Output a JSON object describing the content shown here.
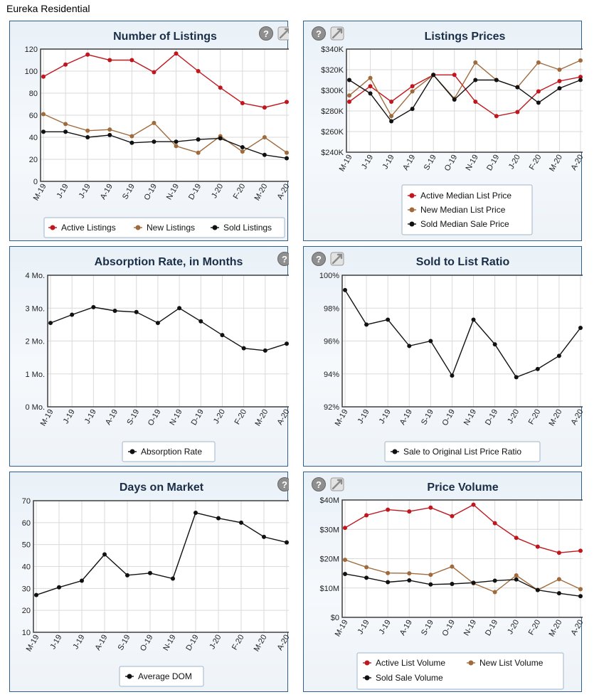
{
  "page_title": "Eureka Residential",
  "colors": {
    "red": "#c0161e",
    "brown": "#a06b3c",
    "black": "#111111",
    "grid": "#d5d5d5",
    "frame": "#4a4a4a"
  },
  "icons": [
    "help-icon",
    "settings-icon"
  ],
  "chart_data": [
    {
      "id": "listings",
      "type": "line",
      "title": "Number of Listings",
      "icons": [
        "help",
        "settings"
      ],
      "categories": [
        "M-19",
        "J-19",
        "J-19",
        "A-19",
        "S-19",
        "O-19",
        "N-19",
        "D-19",
        "J-20",
        "F-20",
        "M-20",
        "A-20"
      ],
      "ylim": [
        0,
        120
      ],
      "yticks": [
        0,
        20,
        40,
        60,
        80,
        100,
        120
      ],
      "ytick_labels": [
        "0",
        "20",
        "40",
        "60",
        "80",
        "100",
        "120"
      ],
      "legend_cols": 3,
      "series": [
        {
          "name": "Active Listings",
          "color": "#c0161e",
          "values": [
            95,
            106,
            115,
            110,
            110,
            99,
            116,
            100,
            85,
            71,
            67,
            72
          ]
        },
        {
          "name": "New Listings",
          "color": "#a06b3c",
          "values": [
            61,
            52,
            46,
            47,
            41,
            53,
            32,
            26,
            41,
            27,
            40,
            26
          ]
        },
        {
          "name": "Sold Listings",
          "color": "#111111",
          "values": [
            45,
            45,
            40,
            42,
            35,
            36,
            36,
            38,
            39,
            31,
            24,
            21
          ]
        }
      ]
    },
    {
      "id": "prices",
      "type": "line",
      "title": "Listings Prices",
      "icons": [
        "help",
        "settings"
      ],
      "categories": [
        "M-19",
        "J-19",
        "J-19",
        "A-19",
        "S-19",
        "O-19",
        "N-19",
        "D-19",
        "J-20",
        "F-20",
        "M-20",
        "A-20"
      ],
      "ylim": [
        240,
        340
      ],
      "yticks": [
        240,
        260,
        280,
        300,
        320,
        340
      ],
      "ytick_labels": [
        "$240K",
        "$260K",
        "$280K",
        "$300K",
        "$320K",
        "$340K"
      ],
      "legend_cols": 1,
      "series": [
        {
          "name": "Active Median List Price",
          "color": "#c0161e",
          "values": [
            289,
            304,
            289,
            304,
            315,
            315,
            289,
            275,
            279,
            299,
            309,
            313
          ]
        },
        {
          "name": "New Median List Price",
          "color": "#a06b3c",
          "values": [
            295,
            312,
            275,
            299,
            315,
            292,
            327,
            310,
            303,
            327,
            320,
            329
          ]
        },
        {
          "name": "Sold Median Sale Price",
          "color": "#111111",
          "values": [
            310,
            297,
            270,
            282,
            315,
            291,
            310,
            310,
            303,
            288,
            302,
            310
          ]
        }
      ]
    },
    {
      "id": "absorption",
      "type": "line",
      "title": "Absorption Rate, in Months",
      "icons": [
        "help"
      ],
      "categories": [
        "M-19",
        "J-19",
        "J-19",
        "A-19",
        "S-19",
        "O-19",
        "N-19",
        "D-19",
        "J-20",
        "F-20",
        "M-20",
        "A-20"
      ],
      "ylim": [
        0,
        4
      ],
      "yticks": [
        0,
        1,
        2,
        3,
        4
      ],
      "ytick_labels": [
        "0 Mo.",
        "1 Mo.",
        "2 Mo.",
        "3 Mo.",
        "4 Mo."
      ],
      "legend_cols": 1,
      "series": [
        {
          "name": "Absorption Rate",
          "color": "#111111",
          "values": [
            2.55,
            2.8,
            3.03,
            2.92,
            2.88,
            2.55,
            3.0,
            2.6,
            2.18,
            1.78,
            1.71,
            1.92
          ]
        }
      ]
    },
    {
      "id": "sold-list-ratio",
      "type": "line",
      "title": "Sold to List Ratio",
      "icons": [
        "help",
        "settings"
      ],
      "categories": [
        "M-19",
        "J-19",
        "J-19",
        "A-19",
        "S-19",
        "O-19",
        "N-19",
        "D-19",
        "J-20",
        "F-20",
        "M-20",
        "A-20"
      ],
      "ylim": [
        92,
        100
      ],
      "yticks": [
        92,
        94,
        96,
        98,
        100
      ],
      "ytick_labels": [
        "92%",
        "94%",
        "96%",
        "98%",
        "100%"
      ],
      "legend_cols": 1,
      "series": [
        {
          "name": "Sale to Original List Price Ratio",
          "color": "#111111",
          "values": [
            99.1,
            97.0,
            97.3,
            95.7,
            96.0,
            93.9,
            97.3,
            95.8,
            93.8,
            94.3,
            95.1,
            96.8
          ]
        }
      ]
    },
    {
      "id": "dom",
      "type": "line",
      "title": "Days on Market",
      "icons": [
        "help"
      ],
      "categories": [
        "M-19",
        "J-19",
        "J-19",
        "A-19",
        "S-19",
        "O-19",
        "N-19",
        "D-19",
        "J-20",
        "F-20",
        "M-20",
        "A-20"
      ],
      "ylim": [
        10,
        70
      ],
      "yticks": [
        10,
        20,
        30,
        40,
        50,
        60,
        70
      ],
      "ytick_labels": [
        "10",
        "20",
        "30",
        "40",
        "50",
        "60",
        "70"
      ],
      "legend_cols": 1,
      "series": [
        {
          "name": "Average DOM",
          "color": "#111111",
          "values": [
            27,
            30.5,
            33.5,
            45.5,
            36,
            37,
            34.5,
            64.5,
            62,
            60,
            53.5,
            51
          ]
        }
      ]
    },
    {
      "id": "volume",
      "type": "line",
      "title": "Price Volume",
      "icons": [
        "help",
        "settings"
      ],
      "categories": [
        "M-19",
        "J-19",
        "J-19",
        "A-19",
        "S-19",
        "O-19",
        "N-19",
        "D-19",
        "J-20",
        "F-20",
        "M-20",
        "A-20"
      ],
      "ylim": [
        0,
        40
      ],
      "yticks": [
        0,
        10,
        20,
        30,
        40
      ],
      "ytick_labels": [
        "$0",
        "$10M",
        "$20M",
        "$30M",
        "$40M"
      ],
      "legend_cols": 2,
      "series": [
        {
          "name": "Active List Volume",
          "color": "#c0161e",
          "values": [
            30.5,
            34.8,
            36.7,
            36.1,
            37.4,
            34.5,
            38.4,
            32.1,
            27.1,
            24.1,
            22.0,
            22.7
          ]
        },
        {
          "name": "New List Volume",
          "color": "#a06b3c",
          "values": [
            19.6,
            17.1,
            15.1,
            15.0,
            14.5,
            17.3,
            11.6,
            8.6,
            14.3,
            9.3,
            13.0,
            9.6
          ]
        },
        {
          "name": "Sold Sale Volume",
          "color": "#111111",
          "values": [
            14.8,
            13.5,
            12.0,
            12.6,
            11.2,
            11.4,
            11.8,
            12.5,
            12.9,
            9.3,
            8.2,
            7.2
          ]
        }
      ]
    }
  ]
}
